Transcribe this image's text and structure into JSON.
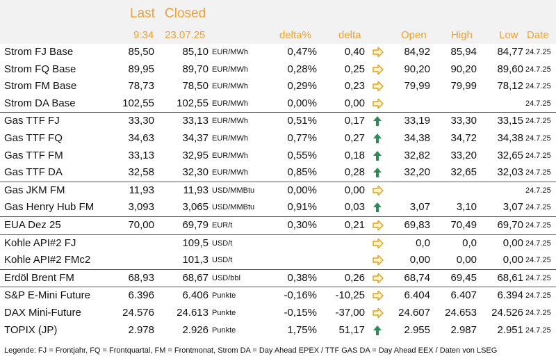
{
  "header": {
    "last": "Last",
    "closed": "Closed",
    "time": "9:34",
    "closed_date": "23.07.25",
    "delta_pct": "delta%",
    "delta": "delta",
    "open": "Open",
    "high": "High",
    "low": "Low",
    "date": "Date"
  },
  "colors": {
    "header_text": "#f0a030",
    "arrow_up": "#2e8b57",
    "arrow_right": "#e0a020",
    "header_bg": "#f2f2f2"
  },
  "rows": [
    {
      "name": "Strom FJ Base",
      "last": "85,50",
      "closed": "85,10",
      "unit": "EUR/MWh",
      "dpct": "0,47%",
      "delta": "0,40",
      "arrow": "right",
      "open": "84,92",
      "high": "85,94",
      "low": "84,77",
      "date": "24.7.25",
      "sep": false
    },
    {
      "name": "Strom FQ Base",
      "last": "89,95",
      "closed": "89,70",
      "unit": "EUR/MWh",
      "dpct": "0,28%",
      "delta": "0,25",
      "arrow": "right",
      "open": "90,20",
      "high": "90,20",
      "low": "89,60",
      "date": "24.7.25",
      "sep": false
    },
    {
      "name": "Strom FM Base",
      "last": "78,73",
      "closed": "78,50",
      "unit": "EUR/MWh",
      "dpct": "0,29%",
      "delta": "0,23",
      "arrow": "right",
      "open": "79,99",
      "high": "79,99",
      "low": "78,12",
      "date": "24.7.25",
      "sep": false
    },
    {
      "name": "Strom DA Base",
      "last": "102,55",
      "closed": "102,55",
      "unit": "EUR/MWh",
      "dpct": "0,00%",
      "delta": "0,00",
      "arrow": "right",
      "open": "",
      "high": "",
      "low": "",
      "date": "24.7.25",
      "sep": false
    },
    {
      "name": "Gas TTF FJ",
      "last": "33,30",
      "closed": "33,13",
      "unit": "EUR/MWh",
      "dpct": "0,51%",
      "delta": "0,17",
      "arrow": "up",
      "open": "33,19",
      "high": "33,30",
      "low": "33,15",
      "date": "24.7.25",
      "sep": true
    },
    {
      "name": "Gas TTF FQ",
      "last": "34,63",
      "closed": "34,37",
      "unit": "EUR/MWh",
      "dpct": "0,77%",
      "delta": "0,27",
      "arrow": "up",
      "open": "34,38",
      "high": "34,72",
      "low": "34,38",
      "date": "24.7.25",
      "sep": false
    },
    {
      "name": "Gas TTF FM",
      "last": "33,13",
      "closed": "32,95",
      "unit": "EUR/MWh",
      "dpct": "0,55%",
      "delta": "0,18",
      "arrow": "up",
      "open": "32,82",
      "high": "33,20",
      "low": "32,65",
      "date": "24.7.25",
      "sep": false
    },
    {
      "name": "Gas TTF DA",
      "last": "32,58",
      "closed": "32,30",
      "unit": "EUR/MWh",
      "dpct": "0,85%",
      "delta": "0,28",
      "arrow": "up",
      "open": "32,20",
      "high": "32,65",
      "low": "32,03",
      "date": "24.7.25",
      "sep": false
    },
    {
      "name": "Gas JKM FM",
      "last": "11,93",
      "closed": "11,93",
      "unit": "USD/MMBtu",
      "dpct": "0,00%",
      "delta": "0,00",
      "arrow": "right",
      "open": "",
      "high": "",
      "low": "",
      "date": "24.7.25",
      "sep": true
    },
    {
      "name": "Gas Henry Hub FM",
      "last": "3,093",
      "closed": "3,065",
      "unit": "USD/MMBtu",
      "dpct": "0,91%",
      "delta": "0,03",
      "arrow": "up",
      "open": "3,07",
      "high": "3,10",
      "low": "3,07",
      "date": "24.7.25",
      "sep": false
    },
    {
      "name": "EUA Dez 25",
      "last": "70,00",
      "closed": "69,79",
      "unit": "EUR/t",
      "dpct": "0,30%",
      "delta": "0,21",
      "arrow": "right",
      "open": "69,83",
      "high": "70,49",
      "low": "69,70",
      "date": "24.7.25",
      "sep": true
    },
    {
      "name": "Kohle API#2 FJ",
      "last": "",
      "closed": "109,5",
      "unit": "USD/t",
      "dpct": "",
      "delta": "",
      "arrow": "right",
      "open": "0,0",
      "high": "0,0",
      "low": "0,00",
      "date": "24.7.25",
      "sep": true
    },
    {
      "name": "Kohle API#2 FMc2",
      "last": "",
      "closed": "101,3",
      "unit": "USD/t",
      "dpct": "",
      "delta": "",
      "arrow": "right",
      "open": "0,00",
      "high": "0,00",
      "low": "0,00",
      "date": "24.7.25",
      "sep": false
    },
    {
      "name": "Erdöl Brent FM",
      "last": "68,93",
      "closed": "68,67",
      "unit": "USD/bbl",
      "dpct": "0,38%",
      "delta": "0,26",
      "arrow": "right",
      "open": "68,74",
      "high": "69,45",
      "low": "68,61",
      "date": "24.7.25",
      "sep": true
    },
    {
      "name": "S&P E-Mini Future",
      "last": "6.396",
      "closed": "6.406",
      "unit": "Punkte",
      "dpct": "-0,16%",
      "delta": "-10,25",
      "arrow": "right",
      "open": "6.404",
      "high": "6.407",
      "low": "6.394",
      "date": "24.7.25",
      "sep": true
    },
    {
      "name": "DAX Mini-Future",
      "last": "24.576",
      "closed": "24.613",
      "unit": "Punkte",
      "dpct": "-0,15%",
      "delta": "-37,00",
      "arrow": "right",
      "open": "24.607",
      "high": "24.653",
      "low": "24.526",
      "date": "24.7.25",
      "sep": false
    },
    {
      "name": "TOPIX (JP)",
      "last": "2.978",
      "closed": "2.926",
      "unit": "Punkte",
      "dpct": "1,75%",
      "delta": "51,17",
      "arrow": "up",
      "open": "2.955",
      "high": "2.987",
      "low": "2.951",
      "date": "24.7.25",
      "sep": false
    }
  ],
  "legend": "Legende: FJ = Frontjahr, FQ = Frontquartal, FM = Frontmonat, Strom DA = Day Ahead EPEX / TTF GAS DA = Day Ahead EEX / Daten von LSEG"
}
